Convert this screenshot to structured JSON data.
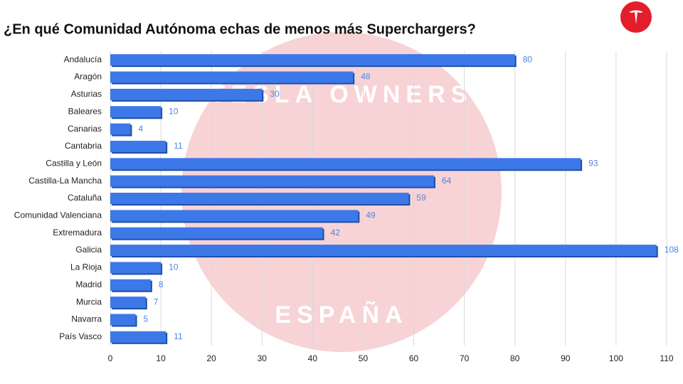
{
  "chart_data": {
    "type": "bar",
    "orientation": "horizontal",
    "title": "¿En qué Comunidad Autónoma echas de menos más Superchargers?",
    "watermark": [
      "TESLA OWNERS",
      "ESPAÑA"
    ],
    "categories": [
      "Andalucía",
      "Aragón",
      "Asturias",
      "Baleares",
      "Canarias",
      "Cantabria",
      "Castilla y León",
      "Castilla-La Mancha",
      "Cataluña",
      "Comunidad Valenciana",
      "Extremadura",
      "Galicia",
      "La Rioja",
      "Madrid",
      "Murcia",
      "Navarra",
      "País Vasco"
    ],
    "values": [
      80,
      48,
      30,
      10,
      4,
      11,
      93,
      64,
      59,
      49,
      42,
      108,
      10,
      8,
      7,
      5,
      11
    ],
    "color": "#3c78e8",
    "xlim": [
      0,
      110
    ],
    "xticks": [
      0,
      10,
      20,
      30,
      40,
      50,
      60,
      70,
      80,
      90,
      100,
      110
    ],
    "grid": true
  }
}
